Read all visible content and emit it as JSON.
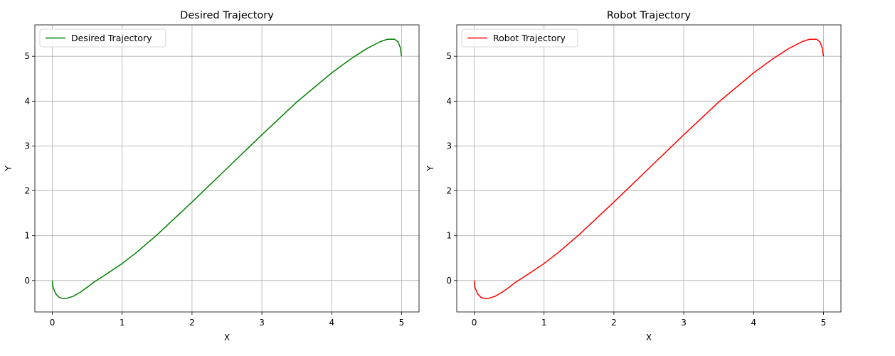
{
  "chart_data": [
    {
      "type": "line",
      "title": "Desired Trajectory",
      "xlabel": "X",
      "ylabel": "Y",
      "xlim": [
        -0.25,
        5.25
      ],
      "ylim": [
        -0.7,
        5.7
      ],
      "xticks": [
        0,
        1,
        2,
        3,
        4,
        5
      ],
      "yticks": [
        0,
        1,
        2,
        3,
        4,
        5
      ],
      "grid": true,
      "legend": "top-left",
      "series": [
        {
          "name": "Desired Trajectory",
          "color": "#008000",
          "x": [
            0,
            0.01,
            0.05,
            0.1,
            0.15,
            0.2,
            0.3,
            0.4,
            0.5,
            0.6,
            0.8,
            1.0,
            1.2,
            1.5,
            2.0,
            2.5,
            3.0,
            3.5,
            4.0,
            4.3,
            4.5,
            4.7,
            4.8,
            4.9,
            4.95,
            4.98,
            5.0
          ],
          "y": [
            0,
            -0.15,
            -0.3,
            -0.38,
            -0.4,
            -0.4,
            -0.35,
            -0.26,
            -0.15,
            -0.03,
            0.17,
            0.38,
            0.62,
            1.02,
            1.75,
            2.5,
            3.25,
            3.98,
            4.63,
            4.97,
            5.17,
            5.33,
            5.38,
            5.38,
            5.32,
            5.2,
            5.0
          ]
        }
      ]
    },
    {
      "type": "line",
      "title": "Robot Trajectory",
      "xlabel": "X",
      "ylabel": "Y",
      "xlim": [
        -0.25,
        5.25
      ],
      "ylim": [
        -0.7,
        5.7
      ],
      "xticks": [
        0,
        1,
        2,
        3,
        4,
        5
      ],
      "yticks": [
        0,
        1,
        2,
        3,
        4,
        5
      ],
      "grid": true,
      "legend": "top-left",
      "series": [
        {
          "name": "Robot Trajectory",
          "color": "#ff0000",
          "x": [
            0,
            0.01,
            0.05,
            0.1,
            0.15,
            0.2,
            0.3,
            0.4,
            0.5,
            0.6,
            0.8,
            1.0,
            1.2,
            1.5,
            2.0,
            2.5,
            3.0,
            3.5,
            4.0,
            4.3,
            4.5,
            4.7,
            4.8,
            4.9,
            4.95,
            4.98,
            5.0
          ],
          "y": [
            0,
            -0.15,
            -0.3,
            -0.38,
            -0.4,
            -0.4,
            -0.35,
            -0.26,
            -0.15,
            -0.03,
            0.17,
            0.38,
            0.62,
            1.02,
            1.75,
            2.5,
            3.25,
            3.98,
            4.63,
            4.97,
            5.17,
            5.33,
            5.38,
            5.38,
            5.32,
            5.2,
            5.0
          ]
        }
      ]
    }
  ]
}
